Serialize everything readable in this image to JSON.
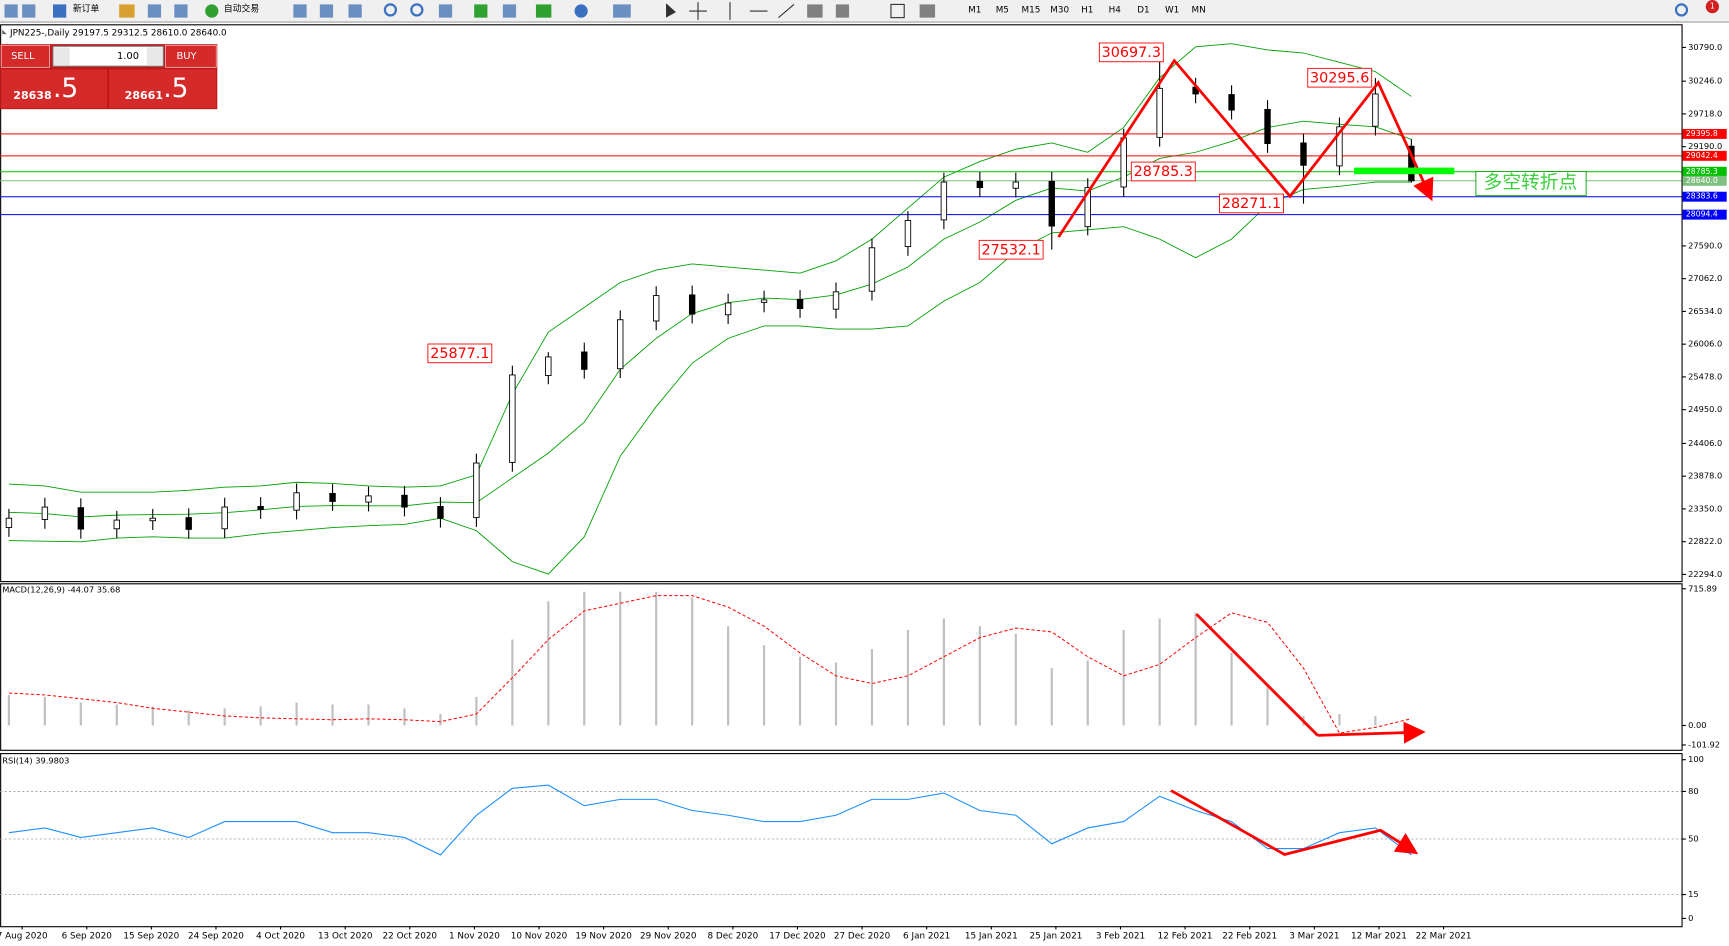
{
  "toolbar": {
    "new_order": "新订单",
    "auto_trading": "自动交易",
    "timeframes": [
      "M1",
      "M5",
      "M15",
      "M30",
      "H1",
      "H4",
      "D1",
      "W1",
      "MN"
    ],
    "notifications": "1"
  },
  "trade_panel": {
    "sell": "SELL",
    "buy": "BUY",
    "lots": "1.00",
    "bid_main": "28638",
    "bid_big": ".5",
    "ask_main": "28661",
    "ask_big": ".5"
  },
  "time_axis": {
    "dates": [
      "7 Aug 2020",
      "6 Sep 2020",
      "15 Sep 2020",
      "24 Sep 2020",
      "4 Oct 2020",
      "13 Oct 2020",
      "22 Oct 2020",
      "1 Nov 2020",
      "10 Nov 2020",
      "19 Nov 2020",
      "29 Nov 2020",
      "8 Dec 2020",
      "17 Dec 2020",
      "27 Dec 2020",
      "6 Jan 2021",
      "15 Jan 2021",
      "25 Jan 2021",
      "3 Feb 2021",
      "12 Feb 2021",
      "22 Feb 2021",
      "3 Mar 2021",
      "12 Mar 2021",
      "22 Mar 2021"
    ]
  },
  "chart_data": [
    {
      "type": "candlestick",
      "title": "JPN225-,Daily 29197.5 29312.5 28610.0 28640.0",
      "open": [
        23050,
        23180,
        23370,
        23030,
        23160,
        23210,
        23030,
        23390,
        23330,
        23600,
        23460,
        23570,
        23390,
        23210,
        24100,
        25500,
        25880,
        25610,
        26380,
        26800,
        26480,
        26680,
        26730,
        26570,
        26860,
        27580,
        28010,
        28630,
        28520,
        28630,
        27900,
        28540,
        29340,
        30150,
        30030,
        29790,
        29250,
        28880,
        29520,
        29197.5
      ],
      "high": [
        23350,
        23530,
        23520,
        23320,
        23350,
        23360,
        23530,
        23540,
        23760,
        23750,
        23710,
        23720,
        23540,
        24240,
        25660,
        25877.1,
        26030,
        26550,
        26940,
        26950,
        26820,
        26870,
        26880,
        27000,
        27710,
        28150,
        28770,
        28780,
        28770,
        28780,
        28680,
        29480,
        30697.3,
        30300,
        30180,
        29940,
        29400,
        29660,
        30295.6,
        29312.5
      ],
      "low": [
        22900,
        23030,
        22870,
        22880,
        23010,
        22870,
        22880,
        23190,
        23180,
        23320,
        23310,
        23230,
        23050,
        23060,
        23950,
        25360,
        25450,
        25460,
        26230,
        26340,
        26330,
        26520,
        26430,
        26420,
        26710,
        27430,
        27860,
        28380,
        28370,
        27532.1,
        27760,
        28380,
        29190,
        29890,
        29630,
        29090,
        28271.1,
        28730,
        29370,
        28610
      ],
      "close": [
        23200,
        23380,
        23025,
        23170,
        23200,
        23020,
        23380,
        23340,
        23610,
        23470,
        23560,
        23380,
        23200,
        24090,
        25510,
        25800,
        25600,
        26400,
        26790,
        26490,
        26670,
        26720,
        26580,
        26850,
        27560,
        28000,
        28620,
        28530,
        28620,
        27910,
        28530,
        29330,
        30130,
        30040,
        29780,
        29240,
        28890,
        29510,
        30040,
        28640
      ],
      "up_color": "#ffffff",
      "down_color": "#000000",
      "bands": [
        {
          "color": "#00a000",
          "values": [
            23750,
            23720,
            23620,
            23620,
            23620,
            23650,
            23700,
            23720,
            23780,
            23760,
            23720,
            23700,
            23720,
            23900,
            25200,
            26200,
            26600,
            27000,
            27200,
            27300,
            27250,
            27200,
            27150,
            27350,
            27700,
            28200,
            28700,
            28950,
            29150,
            29250,
            29100,
            29500,
            30300,
            30800,
            30850,
            30750,
            30700,
            30550,
            30400,
            30000
          ]
        },
        {
          "color": "#00a000",
          "values": [
            23295,
            23275,
            23220,
            23250,
            23260,
            23265,
            23290,
            23335,
            23390,
            23405,
            23400,
            23400,
            23460,
            23450,
            23850,
            24250,
            24750,
            25600,
            26100,
            26500,
            26675,
            26750,
            26725,
            26800,
            26975,
            27250,
            27700,
            27975,
            28325,
            28525,
            28475,
            28700,
            29000,
            29100,
            29275,
            29500,
            29600,
            29550,
            29510,
            29310
          ]
        },
        {
          "color": "#00a000",
          "values": [
            22840,
            22830,
            22820,
            22880,
            22900,
            22880,
            22880,
            22950,
            23000,
            23050,
            23080,
            23100,
            23200,
            23000,
            22500,
            22300,
            22900,
            24200,
            25000,
            25700,
            26100,
            26300,
            26300,
            26250,
            26250,
            26300,
            26700,
            27000,
            27500,
            27800,
            27850,
            27900,
            27700,
            27400,
            27700,
            28250,
            28500,
            28550,
            28620,
            28620
          ]
        }
      ],
      "ylim": [
        22205,
        31128
      ],
      "yticks": [
        {
          "value": 30790,
          "label": "30790.0"
        },
        {
          "value": 30246,
          "label": "30246.0"
        },
        {
          "value": 29718,
          "label": "29718.0"
        },
        {
          "value": 29190,
          "label": "29190.0"
        },
        {
          "value": 27590,
          "label": "27590.0"
        },
        {
          "value": 27062,
          "label": "27062.0"
        },
        {
          "value": 26534,
          "label": "26534.0"
        },
        {
          "value": 26006,
          "label": "26006.0"
        },
        {
          "value": 25478,
          "label": "25478.0"
        },
        {
          "value": 24950,
          "label": "24950.0"
        },
        {
          "value": 24406,
          "label": "24406.0"
        },
        {
          "value": 23878,
          "label": "23878.0"
        },
        {
          "value": 23350,
          "label": "23350.0"
        },
        {
          "value": 22822,
          "label": "22822.0"
        },
        {
          "value": 22294,
          "label": "22294.0"
        }
      ],
      "hlines": [
        {
          "value": 29395.8,
          "color": "#ff0000"
        },
        {
          "value": 29042.4,
          "color": "#ff0000"
        },
        {
          "value": 28785.3,
          "color": "#00c000"
        },
        {
          "value": 28640,
          "label": "28640.0",
          "color": "#7fbf7f"
        },
        {
          "value": 28383.6,
          "color": "#0000ff"
        },
        {
          "value": 28094.4,
          "color": "#0000ff"
        }
      ],
      "annotation": "多空转折点"
    },
    {
      "type": "macd",
      "title": "MACD(12,26,9) -44.07 35.68",
      "histogram": {
        "color": "#c0c0c0",
        "values": [
          160,
          150,
          120,
          110,
          100,
          80,
          90,
          100,
          120,
          110,
          110,
          90,
          60,
          150,
          450,
          650,
          700,
          700,
          700,
          670,
          520,
          420,
          360,
          330,
          400,
          500,
          560,
          520,
          480,
          300,
          340,
          500,
          560,
          590,
          380,
          200,
          50,
          60,
          50,
          -44.07
        ]
      },
      "signal": {
        "color": "#ff0000",
        "values": [
          170,
          160,
          140,
          120,
          90,
          70,
          50,
          40,
          35,
          30,
          35,
          30,
          20,
          60,
          250,
          450,
          600,
          640,
          680,
          680,
          620,
          520,
          380,
          260,
          220,
          260,
          360,
          460,
          510,
          490,
          360,
          260,
          320,
          460,
          590,
          540,
          300,
          -40,
          -10,
          35.68
        ]
      },
      "ylim": [
        -121.2,
        733.2
      ],
      "yticks": [
        715.89,
        {
          "value": 0,
          "label": "0.00"
        },
        -101.92
      ]
    },
    {
      "type": "line",
      "title": "RSI(14) 39.9803",
      "color": "#1e90ff",
      "values": [
        54,
        57,
        51,
        54,
        57,
        51,
        61,
        61,
        61,
        54,
        54,
        51,
        40,
        65,
        82,
        84,
        71,
        75,
        75,
        68,
        65,
        61,
        61,
        65,
        75,
        75,
        79,
        68,
        65,
        47,
        57,
        61,
        77,
        68,
        61,
        44,
        44,
        54,
        57,
        39.9803
      ],
      "ylim": [
        -4.9,
        104.2
      ],
      "yticks": [
        100,
        80,
        50,
        15,
        0
      ]
    }
  ]
}
